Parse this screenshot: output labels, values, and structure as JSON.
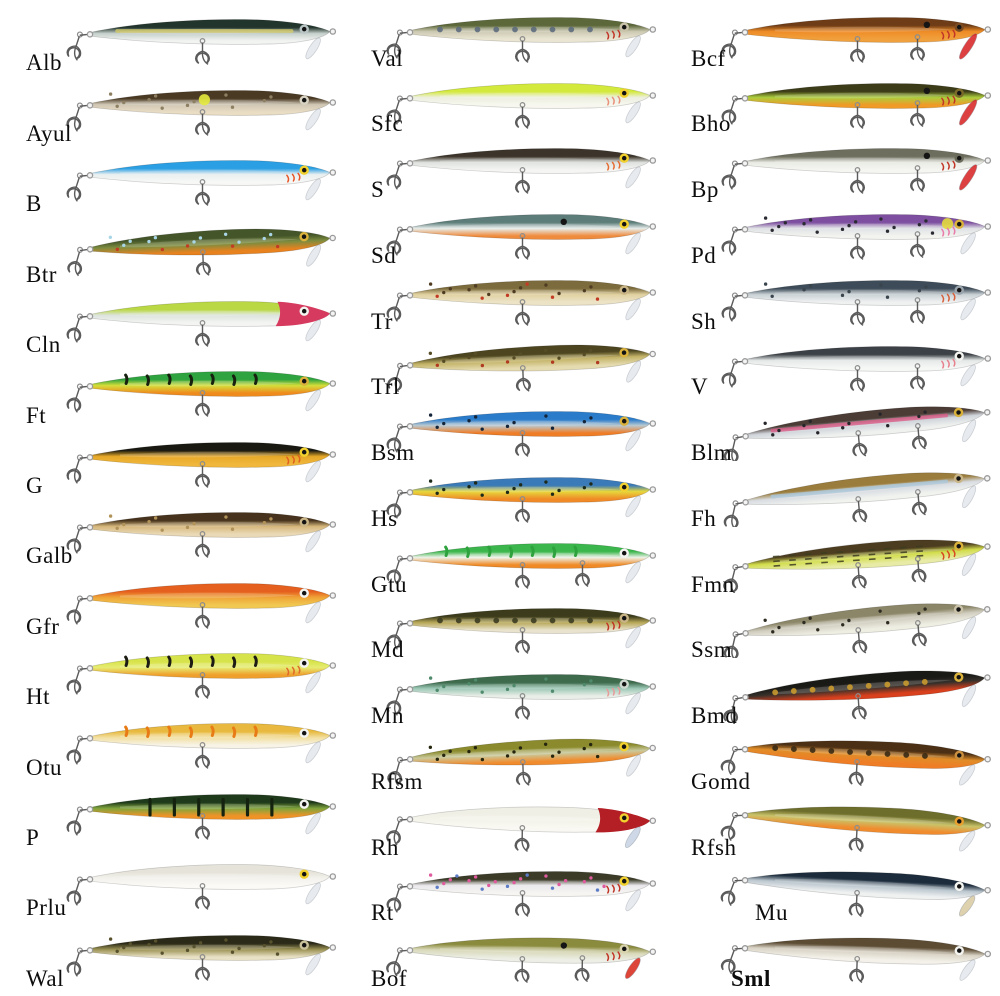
{
  "page": {
    "background": "#ffffff",
    "description_label": "lure color chart"
  },
  "columns": [
    {
      "lures": [
        {
          "label": "Alb",
          "back": "#22352c",
          "side": "#c6d0cc",
          "belly": "#f2f4f2",
          "eye": "#b8c4c4",
          "pattern": {
            "type": "lateral",
            "color": "#d8cf6a"
          },
          "hooks": 1
        },
        {
          "label": "Ayul",
          "back": "#4a3a24",
          "side": "#cfc6b4",
          "belly": "#e9ddc4",
          "eye": "#d8d2c2",
          "patch": "#e4ea3c",
          "pattern": {
            "type": "spots",
            "color": "#8d7f62",
            "n": 12
          },
          "hooks": 1
        },
        {
          "label": "B",
          "back": "#2b9fe3",
          "side": "#e9efef",
          "belly": "#f7f8f6",
          "eye": "#f2d12e",
          "gill": "#e85426",
          "hooks": 1
        },
        {
          "label": "Btr",
          "back": "#44552a",
          "side": "#7d8c3f",
          "belly": "#e8821f",
          "eye": "#d9b13b",
          "pattern": {
            "type": "spots",
            "color": "#a9d6e6",
            "color2": "#c23b24",
            "n": 16
          },
          "hooks": 1,
          "tilt": -2
        },
        {
          "label": "Cln",
          "back": "#b9d843",
          "side": "#dde4df",
          "belly": "#f4f5f2",
          "eye": "#f4f4f0",
          "head": "#d63a5e",
          "hooks": 1
        },
        {
          "label": "Ft",
          "back": "#2ea33f",
          "side": "#d4de3a",
          "belly": "#ef8b1d",
          "eye": "#d9b13b",
          "pattern": {
            "type": "stripes",
            "color": "#17210f"
          },
          "hooks": 1
        },
        {
          "label": "G",
          "back": "#191912",
          "side": "#e7a827",
          "belly": "#f0b73c",
          "eye": "#f2d12e",
          "gill": "#e06020",
          "hooks": 1
        },
        {
          "label": "Galb",
          "back": "#47331d",
          "side": "#d6b77b",
          "belly": "#ead9b6",
          "eye": "#c9b485",
          "pattern": {
            "type": "spots",
            "color": "#b1935a",
            "n": 12
          },
          "hooks": 1
        },
        {
          "label": "Gfr",
          "back": "#e55f1e",
          "side": "#efa437",
          "belly": "#f1c852",
          "eye": "#f4f4f0",
          "hooks": 1
        },
        {
          "label": "Ht",
          "back": "#d7e34a",
          "side": "#e6ec72",
          "belly": "#ef9f2b",
          "eye": "#f4f4f0",
          "gill": "#e06828",
          "pattern": {
            "type": "stripes",
            "color": "#1c1c14"
          },
          "hooks": 1
        },
        {
          "label": "Otu",
          "back": "#e8b93e",
          "side": "#f2df9f",
          "belly": "#f7f3e6",
          "eye": "#f4f4f0",
          "pattern": {
            "type": "stripes",
            "color": "#e87b15"
          },
          "hooks": 1
        },
        {
          "label": "P",
          "back": "#1f3a1b",
          "side": "#7fa43c",
          "belly": "#f09327",
          "eye": "#f4f4f0",
          "pattern": {
            "type": "bars",
            "color": "#14220f"
          },
          "hooks": 1
        },
        {
          "label": "Prlu",
          "back": "#e6e4da",
          "side": "#f3f2ed",
          "belly": "#fbfaf6",
          "eye": "#f2d12e",
          "hooks": 1
        },
        {
          "label": "Wal",
          "back": "#2b2a18",
          "side": "#9b9254",
          "belly": "#e9e1c6",
          "eye": "#c9c19a",
          "pattern": {
            "type": "spots",
            "color": "#57512d",
            "n": 16
          },
          "hooks": 1
        }
      ]
    },
    {
      "lures": [
        {
          "label": "Val",
          "back": "#5c683a",
          "side": "#ccc9b2",
          "belly": "#e9e5d2",
          "eye": "#c9c2a8",
          "gill": "#c13527",
          "pattern": {
            "type": "blotches",
            "color": "#5d6b7c"
          },
          "hooks": 1
        },
        {
          "label": "Sfc",
          "back": "#d3e93c",
          "side": "#edefe0",
          "belly": "#f7f7ef",
          "eye": "#f2d12e",
          "gill": "#e8907a",
          "hooks": 1
        },
        {
          "label": "S",
          "back": "#3c342a",
          "side": "#dfe2df",
          "belly": "#f5f6f4",
          "eye": "#f2d12e",
          "gill": "#e56d33",
          "hooks": 1
        },
        {
          "label": "Sd",
          "back": "#5d7d7a",
          "side": "#e7edeb",
          "belly": "#ef8b3c",
          "eye": "#f2d12e",
          "dot": "#151515",
          "dotX": 192,
          "hooks": 1
        },
        {
          "label": "Tr",
          "back": "#7c6b3c",
          "side": "#e1d1a1",
          "belly": "#ece3c6",
          "eye": "#c9b485",
          "pattern": {
            "type": "spots",
            "color": "#4f3c22",
            "color2": "#c23b24",
            "n": 18
          },
          "hooks": 1
        },
        {
          "label": "Trl",
          "back": "#4c4520",
          "side": "#c3b367",
          "belly": "#e5dbb0",
          "eye": "#d9b13b",
          "pattern": {
            "type": "spots",
            "color": "#554c26",
            "color2": "#b13a22",
            "n": 16
          },
          "hooks": 1,
          "tilt": -2
        },
        {
          "label": "Bsm",
          "back": "#2a7ccb",
          "side": "#bac9d1",
          "belly": "#ef7d26",
          "eye": "#d9b13b",
          "pattern": {
            "type": "spots",
            "color": "#14253a",
            "n": 12
          },
          "hooks": 1
        },
        {
          "label": "Hs",
          "back": "#3a7ab8",
          "side": "#e7d83c",
          "belly": "#f08a27",
          "eye": "#f2d12e",
          "pattern": {
            "type": "spots",
            "color": "#1d2a1a",
            "n": 14
          },
          "hooks": 1
        },
        {
          "label": "Gtu",
          "back": "#3bb64c",
          "side": "#eef2e9",
          "belly": "#ef8a26",
          "eye": "#f4f4f0",
          "pattern": {
            "type": "stripes",
            "color": "#2da23d"
          },
          "hooks": 2
        },
        {
          "label": "Md",
          "back": "#3c3c1c",
          "side": "#b7a757",
          "belly": "#e9e3cd",
          "eye": "#c9b485",
          "gill": "#c13527",
          "pattern": {
            "type": "blotches",
            "color": "#3c3c20"
          },
          "hooks": 1
        },
        {
          "label": "Mn",
          "back": "#3d6b4c",
          "side": "#9cc8b6",
          "belly": "#eaeee8",
          "eye": "#cfd8cf",
          "gill": "#e89b9b",
          "pattern": {
            "type": "spots",
            "color": "#4e8a6b",
            "n": 12
          },
          "hooks": 1
        },
        {
          "label": "Rfsm",
          "back": "#8b8b2d",
          "side": "#c9c99c",
          "belly": "#f08c2e",
          "eye": "#f2d12e",
          "pattern": {
            "type": "spots",
            "color": "#26260f",
            "n": 16
          },
          "hooks": 1,
          "tilt": -2
        },
        {
          "label": "Rh",
          "back": "#f0efe6",
          "side": "#f4f3ea",
          "belly": "#f9f8f2",
          "eye": "#f2d12e",
          "head": "#b41e25",
          "lip": "#c6d2e2",
          "hooks": 1,
          "tilt": 1
        },
        {
          "label": "Rt",
          "back": "#3b3b28",
          "side": "#eae8ec",
          "belly": "#f6f5f2",
          "eye": "#f2d12e",
          "gill": "#c13527",
          "pattern": {
            "type": "spots",
            "color": "#e05a9e",
            "color2": "#5d7cc6",
            "n": 22
          },
          "hooks": 1
        },
        {
          "label": "Bof",
          "back": "#8b8b3e",
          "side": "#d9d9ba",
          "belly": "#edefe6",
          "eye": "#d9d3ad",
          "dot": "#151515",
          "dotX": 192,
          "gill": "#c13527",
          "lip": "#d82517",
          "hooks": 2,
          "tilt": 1
        }
      ]
    },
    {
      "lures": [
        {
          "label": "Bcf",
          "back": "#6e3c17",
          "side": "#ef8c26",
          "belly": "#f0a03c",
          "eye": "#7a4a22",
          "dot": "#151515",
          "dotX": 222,
          "gill": "#c13527",
          "lip": "#d81f1f",
          "lipLong": true,
          "hooks": 2
        },
        {
          "label": "Bho",
          "back": "#3c3c18",
          "side": "#accd3d",
          "belly": "#f09a27",
          "eye": "#7a6a2a",
          "dot": "#151515",
          "dotX": 222,
          "gill": "#c13527",
          "lip": "#d81f1f",
          "lipLong": true,
          "hooks": 2
        },
        {
          "label": "Bp",
          "back": "#6e6e5e",
          "side": "#e9ebe4",
          "belly": "#f5f6f2",
          "eye": "#6a6a5a",
          "dot": "#151515",
          "dotX": 222,
          "gill": "#c13527",
          "lip": "#d81f1f",
          "lipLong": true,
          "hooks": 2
        },
        {
          "label": "Pd",
          "back": "#7e4fa0",
          "side": "#dfe2e5",
          "belly": "#f3f4f0",
          "eye": "#d9b13b",
          "gill": "#e87ba8",
          "patch": "#e3d93c",
          "patchX": 244,
          "pattern": {
            "type": "spots",
            "color": "#2a2a33",
            "n": 16
          },
          "hooks": 2
        },
        {
          "label": "Sh",
          "back": "#3d4c58",
          "side": "#c9d1d5",
          "belly": "#eff1f1",
          "eye": "#9aa4ac",
          "gill": "#d85f3a",
          "pattern": {
            "type": "spots",
            "color": "#39444c",
            "n": 10
          },
          "hooks": 2
        },
        {
          "label": "V",
          "back": "#3c4147",
          "side": "#e5e9e8",
          "belly": "#f6f8f6",
          "eye": "#f4f4f0",
          "gill": "#e87f8d",
          "hooks": 2
        },
        {
          "label": "Blm",
          "back": "#4c3c36",
          "side": "#d0d5db",
          "belly": "#eff1ef",
          "eye": "#d9b13b",
          "pattern": [
            {
              "type": "lateral",
              "color": "#e05a88"
            },
            {
              "type": "spots",
              "color": "#26262a",
              "n": 12
            }
          ],
          "hooks": 2,
          "tilt": -5
        },
        {
          "label": "Fh",
          "back": "#9a7c3c",
          "side": "#d9dde2",
          "belly": "#f1f3ef",
          "eye": "#c9b485",
          "pattern": {
            "type": "lateral",
            "color": "#a9c9e2"
          },
          "hooks": 2,
          "tilt": -5
        },
        {
          "label": "Fmn",
          "back": "#4c3c20",
          "side": "#d2dd4a",
          "belly": "#e8eba6",
          "eye": "#d9b13b",
          "gill": "#d84a1f",
          "pattern": {
            "type": "dashes",
            "color": "#3c3c20"
          },
          "hooks": 2,
          "tilt": -4
        },
        {
          "label": "Ssm",
          "back": "#8c8668",
          "side": "#d1cec0",
          "belly": "#efeee3",
          "eye": "#c9c2a8",
          "pattern": {
            "type": "spots",
            "color": "#2e2c22",
            "n": 12
          },
          "hooks": 2,
          "tilt": -5
        },
        {
          "label": "Bmd",
          "back": "#191916",
          "side": "#35302a",
          "belly": "#d9401d",
          "eye": "#d9b13b",
          "pattern": {
            "type": "blotches",
            "color": "#c9992e"
          },
          "hooks": 1,
          "tilt": -4
        },
        {
          "label": "Gomd",
          "back": "#4c3015",
          "side": "#e08d28",
          "belly": "#ef7d26",
          "eye": "#c98f3e",
          "pattern": {
            "type": "blotches",
            "color": "#3a2a14"
          },
          "hooks": 1,
          "tilt": 3
        },
        {
          "label": "Rfsh",
          "back": "#6e6e2c",
          "side": "#c9c36a",
          "belly": "#f08c2e",
          "eye": "#e8a030",
          "hooks": 1,
          "tilt": 3
        },
        {
          "label": "Mu",
          "back": "#1c2c3c",
          "side": "#b9c5cd",
          "belly": "#eff1f1",
          "eye": "#f4f4f0",
          "lip": "#d9c9a0",
          "hooks": 1,
          "tilt": 3,
          "indent": 90
        },
        {
          "label": "Sml",
          "back": "#5c4c34",
          "side": "#d9d3c5",
          "belly": "#f3f1e9",
          "eye": "#f4f4f0",
          "hooks": 1,
          "tilt": 2,
          "bold": true,
          "indent": 66
        }
      ]
    }
  ]
}
